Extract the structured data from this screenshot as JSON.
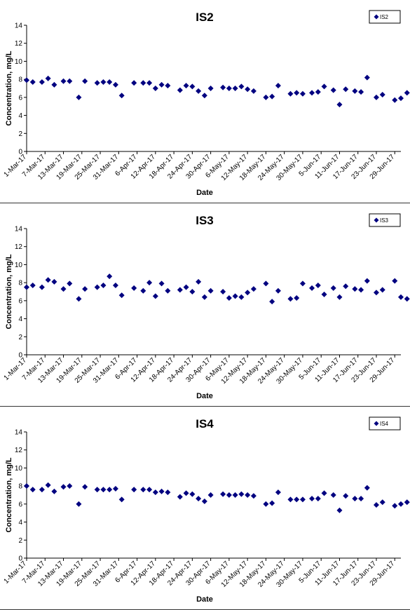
{
  "chart_data": [
    {
      "type": "scatter",
      "title": "IS2",
      "xlabel": "Date",
      "ylabel": "Concentration, mg/L",
      "ylim": [
        0,
        14
      ],
      "yticks": [
        0,
        2,
        4,
        6,
        8,
        10,
        12,
        14
      ],
      "xlim": [
        "2017-03-01",
        "2017-07-01"
      ],
      "xticks": [
        "1-Mar-17",
        "7-Mar-17",
        "13-Mar-17",
        "19-Mar-17",
        "25-Mar-17",
        "31-Mar-17",
        "6-Apr-17",
        "12-Apr-17",
        "18-Apr-17",
        "24-Apr-17",
        "30-Apr-17",
        "6-May-17",
        "12-May-17",
        "18-May-17",
        "24-May-17",
        "30-May-17",
        "5-Jun-17",
        "11-Jun-17",
        "17-Jun-17",
        "23-Jun-17",
        "29-Jun-17"
      ],
      "legend": "top-right",
      "color": "#000080",
      "series": [
        {
          "name": "IS2",
          "x": [
            "2017-03-01",
            "2017-03-03",
            "2017-03-06",
            "2017-03-08",
            "2017-03-10",
            "2017-03-13",
            "2017-03-15",
            "2017-03-18",
            "2017-03-20",
            "2017-03-24",
            "2017-03-26",
            "2017-03-28",
            "2017-03-30",
            "2017-04-01",
            "2017-04-05",
            "2017-04-08",
            "2017-04-10",
            "2017-04-12",
            "2017-04-14",
            "2017-04-16",
            "2017-04-20",
            "2017-04-22",
            "2017-04-24",
            "2017-04-26",
            "2017-04-28",
            "2017-04-30",
            "2017-05-04",
            "2017-05-06",
            "2017-05-08",
            "2017-05-10",
            "2017-05-12",
            "2017-05-14",
            "2017-05-18",
            "2017-05-20",
            "2017-05-22",
            "2017-05-26",
            "2017-05-28",
            "2017-05-30",
            "2017-06-02",
            "2017-06-04",
            "2017-06-06",
            "2017-06-09",
            "2017-06-11",
            "2017-06-13",
            "2017-06-16",
            "2017-06-18",
            "2017-06-20",
            "2017-06-23",
            "2017-06-25",
            "2017-06-29",
            "2017-07-01",
            "2017-07-03"
          ],
          "y": [
            7.9,
            7.7,
            7.7,
            8.1,
            7.4,
            7.8,
            7.8,
            6.0,
            7.8,
            7.6,
            7.7,
            7.7,
            7.4,
            6.2,
            7.6,
            7.6,
            7.6,
            7.0,
            7.4,
            7.3,
            6.8,
            7.3,
            7.2,
            6.7,
            6.2,
            7.0,
            7.1,
            7.0,
            7.0,
            7.2,
            6.9,
            6.7,
            6.0,
            6.1,
            7.3,
            6.4,
            6.5,
            6.4,
            6.5,
            6.6,
            7.2,
            6.8,
            5.2,
            6.9,
            6.7,
            6.6,
            8.2,
            6.0,
            6.3,
            5.7,
            5.9,
            6.5
          ]
        }
      ]
    },
    {
      "type": "scatter",
      "title": "IS3",
      "xlabel": "Date",
      "ylabel": "Concentration, mg/L",
      "ylim": [
        0,
        14
      ],
      "yticks": [
        0,
        2,
        4,
        6,
        8,
        10,
        12,
        14
      ],
      "xlim": [
        "2017-03-01",
        "2017-07-01"
      ],
      "xticks": [
        "1-Mar-17",
        "7-Mar-17",
        "13-Mar-17",
        "19-Mar-17",
        "25-Mar-17",
        "31-Mar-17",
        "6-Apr-17",
        "12-Apr-17",
        "18-Apr-17",
        "24-Apr-17",
        "30-Apr-17",
        "6-May-17",
        "12-May-17",
        "18-May-17",
        "24-May-17",
        "30-May-17",
        "5-Jun-17",
        "11-Jun-17",
        "17-Jun-17",
        "23-Jun-17",
        "29-Jun-17"
      ],
      "legend": "top-right",
      "color": "#000080",
      "series": [
        {
          "name": "IS3",
          "x": [
            "2017-03-01",
            "2017-03-03",
            "2017-03-06",
            "2017-03-08",
            "2017-03-10",
            "2017-03-13",
            "2017-03-15",
            "2017-03-18",
            "2017-03-20",
            "2017-03-24",
            "2017-03-26",
            "2017-03-28",
            "2017-03-30",
            "2017-04-01",
            "2017-04-05",
            "2017-04-08",
            "2017-04-10",
            "2017-04-12",
            "2017-04-14",
            "2017-04-16",
            "2017-04-20",
            "2017-04-22",
            "2017-04-24",
            "2017-04-26",
            "2017-04-28",
            "2017-04-30",
            "2017-05-04",
            "2017-05-06",
            "2017-05-08",
            "2017-05-10",
            "2017-05-12",
            "2017-05-14",
            "2017-05-18",
            "2017-05-20",
            "2017-05-22",
            "2017-05-26",
            "2017-05-28",
            "2017-05-30",
            "2017-06-02",
            "2017-06-04",
            "2017-06-06",
            "2017-06-09",
            "2017-06-11",
            "2017-06-13",
            "2017-06-16",
            "2017-06-18",
            "2017-06-20",
            "2017-06-23",
            "2017-06-25",
            "2017-06-29",
            "2017-07-01",
            "2017-07-03"
          ],
          "y": [
            7.5,
            7.7,
            7.5,
            8.3,
            8.1,
            7.3,
            7.9,
            6.2,
            7.3,
            7.5,
            7.7,
            8.7,
            7.7,
            6.6,
            7.4,
            7.1,
            8.0,
            6.5,
            7.9,
            7.1,
            7.2,
            7.5,
            7.0,
            8.1,
            6.4,
            7.1,
            7.0,
            6.3,
            6.5,
            6.4,
            6.9,
            7.3,
            7.9,
            5.9,
            7.1,
            6.2,
            6.3,
            7.9,
            7.4,
            7.7,
            6.7,
            7.4,
            6.4,
            7.6,
            7.3,
            7.2,
            8.2,
            6.9,
            7.2,
            8.2,
            6.4,
            6.2
          ]
        }
      ]
    },
    {
      "type": "scatter",
      "title": "IS4",
      "xlabel": "Date",
      "ylabel": "Concentration, mg/L",
      "ylim": [
        0,
        14
      ],
      "yticks": [
        0,
        2,
        4,
        6,
        8,
        10,
        12,
        14
      ],
      "xlim": [
        "2017-03-01",
        "2017-07-01"
      ],
      "xticks": [
        "1-Mar-17",
        "7-Mar-17",
        "13-Mar-17",
        "19-Mar-17",
        "25-Mar-17",
        "31-Mar-17",
        "6-Apr-17",
        "12-Apr-17",
        "18-Apr-17",
        "24-Apr-17",
        "30-Apr-17",
        "6-May-17",
        "12-May-17",
        "18-May-17",
        "24-May-17",
        "30-May-17",
        "5-Jun-17",
        "11-Jun-17",
        "17-Jun-17",
        "23-Jun-17",
        "29-Jun-17"
      ],
      "legend": "top-right",
      "color": "#000080",
      "series": [
        {
          "name": "IS4",
          "x": [
            "2017-03-01",
            "2017-03-03",
            "2017-03-06",
            "2017-03-08",
            "2017-03-10",
            "2017-03-13",
            "2017-03-15",
            "2017-03-18",
            "2017-03-20",
            "2017-03-24",
            "2017-03-26",
            "2017-03-28",
            "2017-03-30",
            "2017-04-01",
            "2017-04-05",
            "2017-04-08",
            "2017-04-10",
            "2017-04-12",
            "2017-04-14",
            "2017-04-16",
            "2017-04-20",
            "2017-04-22",
            "2017-04-24",
            "2017-04-26",
            "2017-04-28",
            "2017-04-30",
            "2017-05-04",
            "2017-05-06",
            "2017-05-08",
            "2017-05-10",
            "2017-05-12",
            "2017-05-14",
            "2017-05-18",
            "2017-05-20",
            "2017-05-22",
            "2017-05-26",
            "2017-05-28",
            "2017-05-30",
            "2017-06-02",
            "2017-06-04",
            "2017-06-06",
            "2017-06-09",
            "2017-06-11",
            "2017-06-13",
            "2017-06-16",
            "2017-06-18",
            "2017-06-20",
            "2017-06-23",
            "2017-06-25",
            "2017-06-29",
            "2017-07-01",
            "2017-07-03"
          ],
          "y": [
            8.0,
            7.6,
            7.6,
            8.1,
            7.4,
            7.9,
            8.0,
            6.0,
            7.9,
            7.6,
            7.6,
            7.6,
            7.7,
            6.5,
            7.6,
            7.6,
            7.6,
            7.3,
            7.4,
            7.3,
            6.8,
            7.2,
            7.1,
            6.6,
            6.3,
            7.0,
            7.1,
            7.0,
            7.0,
            7.1,
            7.0,
            6.9,
            6.0,
            6.1,
            7.3,
            6.5,
            6.5,
            6.5,
            6.6,
            6.6,
            7.2,
            7.0,
            5.3,
            6.9,
            6.6,
            6.6,
            7.8,
            5.9,
            6.2,
            5.8,
            6.0,
            6.2
          ]
        }
      ]
    }
  ]
}
